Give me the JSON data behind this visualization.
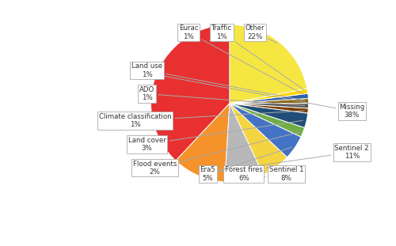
{
  "labels": [
    "Missing",
    "Sentinel 2",
    "Sentinel 1",
    "Forest fires",
    "Era5",
    "Flood events",
    "Land cover",
    "Climate classification",
    "ADO",
    "Land use",
    "Eurac",
    "Traffic",
    "Other"
  ],
  "values": [
    38,
    11,
    8,
    6,
    5,
    2,
    3,
    1,
    1,
    1,
    1,
    1,
    22
  ],
  "colors": [
    "#e83030",
    "#f5922a",
    "#b8b8b8",
    "#f5d442",
    "#4472c4",
    "#70ad47",
    "#1f4e79",
    "#7b3f00",
    "#595959",
    "#8b6914",
    "#2e5fa3",
    "#ffd700",
    "#f5e642"
  ],
  "legend_labels": [
    "Missing",
    "Sentinel 2",
    "Sentinel 1",
    "Forest fires",
    "Era5",
    "Flood events",
    "Land cover",
    "Climate classification",
    "ADO",
    "Land use",
    "Eurac",
    "Traffic",
    "Other"
  ],
  "legend_colors": [
    "#e83030",
    "#f5922a",
    "#b8b8b8",
    "#f5d442",
    "#4472c4",
    "#70ad47",
    "#1f4e79",
    "#7b3f00",
    "#595959",
    "#8b6914",
    "#2e5fa3",
    "#ffd700",
    "#f5e642"
  ],
  "startangle": 90,
  "background_color": "#ffffff",
  "annotations": [
    {
      "label": "Missing\n38%",
      "side": "right",
      "xt": 1.55,
      "yt": -0.1
    },
    {
      "label": "Sentinel 2\n11%",
      "side": "right",
      "xt": 1.55,
      "yt": -0.62
    },
    {
      "label": "Sentinel 1\n8%",
      "side": "bottom",
      "xt": 0.72,
      "yt": -0.9
    },
    {
      "label": "Forest fires\n6%",
      "side": "bottom",
      "xt": 0.18,
      "yt": -0.9
    },
    {
      "label": "Era5\n5%",
      "side": "bottom",
      "xt": -0.28,
      "yt": -0.9
    },
    {
      "label": "Flood events\n2%",
      "side": "left",
      "xt": -0.95,
      "yt": -0.82
    },
    {
      "label": "Land cover\n3%",
      "side": "left",
      "xt": -1.05,
      "yt": -0.52
    },
    {
      "label": "Climate classification\n1%",
      "side": "left",
      "xt": -1.2,
      "yt": -0.22
    },
    {
      "label": "ADO\n1%",
      "side": "left",
      "xt": -1.05,
      "yt": 0.12
    },
    {
      "label": "Land use\n1%",
      "side": "left",
      "xt": -1.05,
      "yt": 0.42
    },
    {
      "label": "Eurac\n1%",
      "side": "top",
      "xt": -0.52,
      "yt": 0.9
    },
    {
      "label": "Traffic\n1%",
      "side": "top",
      "xt": -0.1,
      "yt": 0.9
    },
    {
      "label": "Other\n22%",
      "side": "top",
      "xt": 0.32,
      "yt": 0.9
    }
  ]
}
